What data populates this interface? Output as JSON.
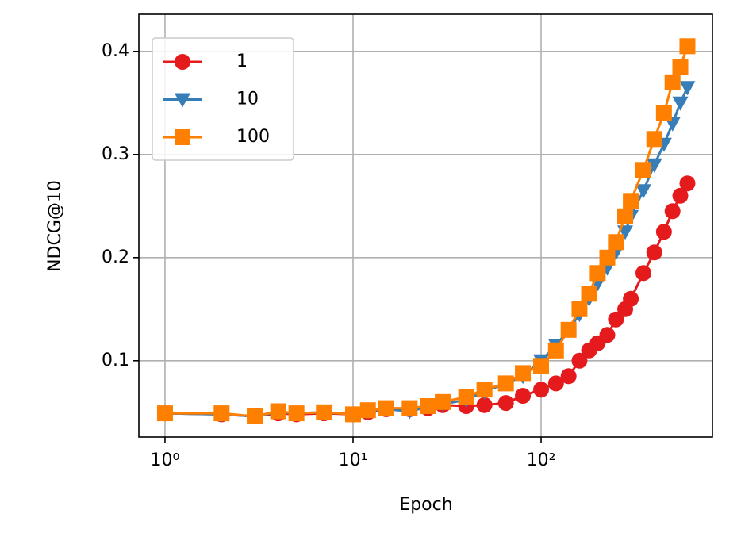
{
  "chart_data": {
    "type": "line",
    "xlabel": "Epoch",
    "ylabel": "NDCG@10",
    "xscale": "log",
    "x": [
      1,
      2,
      3,
      4,
      5,
      7,
      10,
      12,
      15,
      20,
      25,
      30,
      40,
      50,
      65,
      80,
      100,
      120,
      140,
      160,
      180,
      200,
      225,
      250,
      280,
      300,
      350,
      400,
      450,
      500,
      550,
      600
    ],
    "series": [
      {
        "name": "1",
        "color": "#e41a1c",
        "marker": "circle",
        "values": [
          0.049,
          0.048,
          0.046,
          0.049,
          0.048,
          0.049,
          0.048,
          0.05,
          0.053,
          0.053,
          0.054,
          0.057,
          0.056,
          0.057,
          0.059,
          0.066,
          0.072,
          0.078,
          0.085,
          0.1,
          0.11,
          0.117,
          0.125,
          0.14,
          0.15,
          0.16,
          0.185,
          0.205,
          0.225,
          0.245,
          0.26,
          0.272
        ]
      },
      {
        "name": "10",
        "color": "#377eb8",
        "marker": "triangle-down",
        "values": [
          0.049,
          0.048,
          0.046,
          0.05,
          0.049,
          0.05,
          0.048,
          0.051,
          0.053,
          0.051,
          0.055,
          0.058,
          0.062,
          0.07,
          0.078,
          0.085,
          0.1,
          0.115,
          0.13,
          0.145,
          0.16,
          0.175,
          0.19,
          0.205,
          0.225,
          0.24,
          0.265,
          0.29,
          0.31,
          0.33,
          0.35,
          0.365
        ]
      },
      {
        "name": "100",
        "color": "#ff7f00",
        "marker": "square",
        "values": [
          0.049,
          0.049,
          0.046,
          0.051,
          0.049,
          0.05,
          0.048,
          0.052,
          0.054,
          0.054,
          0.056,
          0.06,
          0.065,
          0.072,
          0.078,
          0.088,
          0.095,
          0.11,
          0.13,
          0.15,
          0.165,
          0.185,
          0.2,
          0.215,
          0.24,
          0.255,
          0.285,
          0.315,
          0.34,
          0.37,
          0.385,
          0.405
        ]
      }
    ],
    "xlim": [
      0.726,
      815
    ],
    "xticks": [
      {
        "value": 1,
        "label": "10⁰"
      },
      {
        "value": 10,
        "label": "10¹"
      },
      {
        "value": 100,
        "label": "10²"
      }
    ],
    "ylim": [
      0.026,
      0.436
    ],
    "yticks": [
      0.1,
      0.2,
      0.3,
      0.4
    ],
    "grid": true,
    "legend": "upper left"
  }
}
